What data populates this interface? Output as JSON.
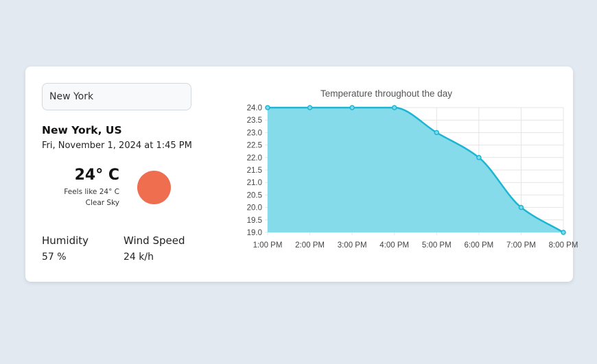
{
  "search": {
    "value": "New York"
  },
  "location": {
    "city": "New York, US",
    "datetime": "Fri, November 1, 2024 at 1:45 PM"
  },
  "current": {
    "temperature": "24° C",
    "feels_like": "Feels like 24° C",
    "condition": "Clear Sky",
    "icon": "sun-icon",
    "icon_color": "#ee6e4f"
  },
  "stats": {
    "humidity_label": "Humidity",
    "humidity_value": "57 %",
    "wind_label": "Wind Speed",
    "wind_value": "24 k/h"
  },
  "chart_data": {
    "type": "area",
    "title": "Temperature throughout the day",
    "categories": [
      "1:00 PM",
      "2:00 PM",
      "3:00 PM",
      "4:00 PM",
      "5:00 PM",
      "6:00 PM",
      "7:00 PM",
      "8:00 PM"
    ],
    "values": [
      24,
      24,
      24,
      24,
      23,
      22,
      20,
      19
    ],
    "ylim": [
      19,
      24
    ],
    "yticks": [
      "24.0",
      "23.5",
      "23.0",
      "22.5",
      "22.0",
      "21.5",
      "21.0",
      "20.5",
      "20.0",
      "19.5",
      "19.0"
    ],
    "grid": true,
    "colors": {
      "line": "#1cb5d2",
      "fill": "#7fd9ea"
    }
  }
}
